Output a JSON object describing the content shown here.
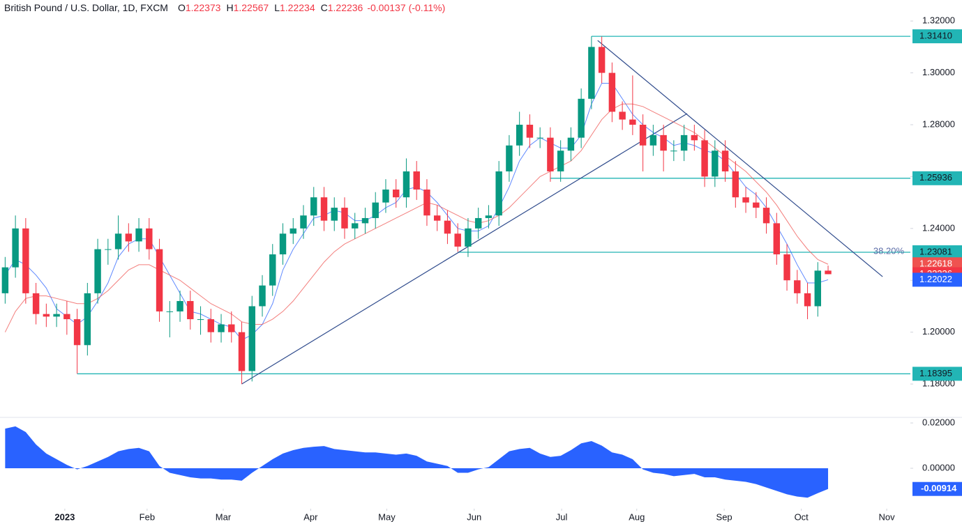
{
  "chart_data": {
    "type": "candlestick",
    "title": "British Pound / U.S. Dollar, 1D, FXCM",
    "ohlc_prefixes": [
      "O",
      "H",
      "L",
      "C"
    ],
    "change": -0.00137,
    "change_percent": {
      "value": -0.11,
      "label": "(-0.11%)"
    },
    "up_color": "#089981",
    "down_color": "#f23645",
    "xlim": [
      -0.5,
      88
    ],
    "xticks": [
      {
        "value": 5.8,
        "label": "2023"
      },
      {
        "value": 13.8,
        "label": "Feb"
      },
      {
        "value": 21.2,
        "label": "Mar"
      },
      {
        "value": 29.7,
        "label": "Apr"
      },
      {
        "value": 37.1,
        "label": "May"
      },
      {
        "value": 45.6,
        "label": "Jun"
      },
      {
        "value": 54.1,
        "label": "Jul"
      },
      {
        "value": 61.4,
        "label": "Aug"
      },
      {
        "value": 69.9,
        "label": "Sep"
      },
      {
        "value": 77.4,
        "label": "Oct"
      },
      {
        "value": 85.7,
        "label": "Nov"
      }
    ],
    "ylim": [
      1.1674,
      1.3281
    ],
    "yticks": [
      {
        "value": 1.18,
        "label": "1.18000"
      },
      {
        "value": 1.2,
        "label": "1.20000"
      },
      {
        "value": 1.22,
        "label": "1.22000"
      },
      {
        "value": 1.24,
        "label": "1.24000"
      },
      {
        "value": 1.26,
        "label": "1.26000"
      },
      {
        "value": 1.28,
        "label": "1.28000"
      },
      {
        "value": 1.3,
        "label": "1.30000"
      },
      {
        "value": 1.32,
        "label": "1.32000"
      }
    ],
    "open": [
      1.215,
      1.225,
      1.24,
      1.215,
      1.207,
      1.206,
      1.207,
      1.205,
      1.195,
      1.215,
      1.232,
      1.232,
      1.238,
      1.235,
      1.24,
      1.232,
      1.208,
      1.208,
      1.212,
      1.205,
      1.205,
      1.2,
      1.203,
      1.2,
      1.185,
      1.21,
      1.218,
      1.23,
      1.238,
      1.24,
      1.245,
      1.252,
      1.243,
      1.248,
      1.24,
      1.242,
      1.244,
      1.25,
      1.255,
      1.252,
      1.262,
      1.255,
      1.245,
      1.243,
      1.238,
      1.233,
      1.24,
      1.244,
      1.245,
      1.262,
      1.272,
      1.28,
      1.275,
      1.275,
      1.262,
      1.27,
      1.275,
      1.29,
      1.31,
      1.3,
      1.285,
      1.282,
      1.28,
      1.272,
      1.276,
      1.27,
      1.27,
      1.276,
      1.274,
      1.26,
      1.27,
      1.262,
      1.252,
      1.25,
      1.248,
      1.242,
      1.23,
      1.22,
      1.215,
      1.21,
      1.22373
    ],
    "high": [
      1.229,
      1.245,
      1.244,
      1.219,
      1.211,
      1.211,
      1.212,
      1.209,
      1.219,
      1.236,
      1.236,
      1.245,
      1.242,
      1.244,
      1.244,
      1.236,
      1.212,
      1.216,
      1.216,
      1.21,
      1.209,
      1.207,
      1.208,
      1.204,
      1.214,
      1.222,
      1.234,
      1.242,
      1.244,
      1.249,
      1.256,
      1.256,
      1.252,
      1.252,
      1.246,
      1.248,
      1.254,
      1.259,
      1.259,
      1.267,
      1.266,
      1.259,
      1.249,
      1.247,
      1.242,
      1.244,
      1.248,
      1.249,
      1.266,
      1.276,
      1.285,
      1.284,
      1.279,
      1.279,
      1.274,
      1.279,
      1.294,
      1.3141,
      1.314,
      1.304,
      1.289,
      1.299,
      1.284,
      1.28,
      1.28,
      1.274,
      1.28,
      1.28,
      1.278,
      1.274,
      1.274,
      1.266,
      1.256,
      1.254,
      1.252,
      1.246,
      1.234,
      1.224,
      1.219,
      1.227,
      1.22567
    ],
    "low": [
      1.211,
      1.221,
      1.211,
      1.203,
      1.202,
      1.202,
      1.199,
      1.184,
      1.191,
      1.211,
      1.226,
      1.228,
      1.231,
      1.231,
      1.228,
      1.204,
      1.198,
      1.204,
      1.201,
      1.199,
      1.196,
      1.196,
      1.196,
      1.18,
      1.181,
      1.206,
      1.214,
      1.226,
      1.234,
      1.236,
      1.241,
      1.239,
      1.239,
      1.236,
      1.236,
      1.238,
      1.24,
      1.246,
      1.248,
      1.248,
      1.251,
      1.241,
      1.239,
      1.234,
      1.231,
      1.229,
      1.236,
      1.24,
      1.241,
      1.258,
      1.268,
      1.271,
      1.271,
      1.258,
      1.258,
      1.266,
      1.271,
      1.286,
      1.296,
      1.281,
      1.278,
      1.276,
      1.262,
      1.268,
      1.262,
      1.266,
      1.266,
      1.27,
      1.256,
      1.256,
      1.258,
      1.248,
      1.246,
      1.244,
      1.238,
      1.226,
      1.216,
      1.211,
      1.205,
      1.206,
      1.22234
    ],
    "close": [
      1.225,
      1.24,
      1.215,
      1.207,
      1.206,
      1.207,
      1.205,
      1.195,
      1.215,
      1.232,
      1.232,
      1.238,
      1.235,
      1.24,
      1.232,
      1.208,
      1.208,
      1.212,
      1.205,
      1.205,
      1.2,
      1.203,
      1.2,
      1.185,
      1.21,
      1.218,
      1.23,
      1.238,
      1.24,
      1.245,
      1.252,
      1.243,
      1.248,
      1.24,
      1.242,
      1.244,
      1.25,
      1.255,
      1.252,
      1.262,
      1.255,
      1.245,
      1.243,
      1.238,
      1.233,
      1.24,
      1.244,
      1.245,
      1.262,
      1.272,
      1.28,
      1.275,
      1.275,
      1.262,
      1.27,
      1.275,
      1.29,
      1.31,
      1.3,
      1.285,
      1.282,
      1.28,
      1.272,
      1.276,
      1.27,
      1.27,
      1.276,
      1.274,
      1.26,
      1.27,
      1.262,
      1.252,
      1.25,
      1.248,
      1.242,
      1.23,
      1.22,
      1.215,
      1.21,
      1.22373,
      1.22236
    ],
    "moving_averages": [
      {
        "color": "#2962ff",
        "badge_color": "#2962ff",
        "values": [
          1.222,
          1.228,
          1.226,
          1.222,
          1.217,
          1.209,
          1.206,
          1.203,
          1.206,
          1.212,
          1.219,
          1.229,
          1.234,
          1.236,
          1.236,
          1.229,
          1.222,
          1.215,
          1.208,
          1.207,
          1.205,
          1.203,
          1.202,
          1.197,
          1.199,
          1.203,
          1.211,
          1.224,
          1.232,
          1.238,
          1.244,
          1.245,
          1.247,
          1.246,
          1.243,
          1.243,
          1.245,
          1.248,
          1.25,
          1.255,
          1.256,
          1.254,
          1.25,
          1.245,
          1.24,
          1.239,
          1.239,
          1.241,
          1.248,
          1.256,
          1.266,
          1.272,
          1.275,
          1.273,
          1.271,
          1.271,
          1.276,
          1.288,
          1.296,
          1.296,
          1.29,
          1.284,
          1.28,
          1.277,
          1.275,
          1.272,
          1.273,
          1.272,
          1.27,
          1.269,
          1.266,
          1.261,
          1.256,
          1.253,
          1.248,
          1.241,
          1.234,
          1.226,
          1.219,
          1.219,
          1.22022
        ]
      },
      {
        "color": "#ef5350",
        "badge_color": "#f23645",
        "values": [
          1.2,
          1.208,
          1.213,
          1.214,
          1.214,
          1.213,
          1.212,
          1.211,
          1.211,
          1.213,
          1.216,
          1.22,
          1.224,
          1.226,
          1.226,
          1.224,
          1.222,
          1.22,
          1.217,
          1.214,
          1.211,
          1.209,
          1.207,
          1.204,
          1.203,
          1.203,
          1.205,
          1.208,
          1.212,
          1.217,
          1.222,
          1.227,
          1.231,
          1.234,
          1.236,
          1.238,
          1.24,
          1.242,
          1.244,
          1.246,
          1.248,
          1.25,
          1.249,
          1.247,
          1.245,
          1.243,
          1.242,
          1.243,
          1.245,
          1.248,
          1.252,
          1.256,
          1.26,
          1.262,
          1.264,
          1.266,
          1.27,
          1.276,
          1.282,
          1.286,
          1.288,
          1.288,
          1.287,
          1.285,
          1.283,
          1.281,
          1.279,
          1.277,
          1.274,
          1.271,
          1.268,
          1.265,
          1.262,
          1.258,
          1.254,
          1.249,
          1.243,
          1.237,
          1.232,
          1.228,
          1.22618
        ]
      }
    ],
    "level_color": "#22b5b5",
    "levels": [
      {
        "value": {
          "value": 1.3141,
          "label": "1.31410"
        },
        "start": 57
      },
      {
        "value": 1.25936,
        "start": 53
      },
      {
        "value": 1.23081,
        "start": 44,
        "note": "38.20%"
      },
      {
        "value": 1.18395,
        "start": 7
      }
    ],
    "trendline_color": "#2f4b8c",
    "trendlines": [
      {
        "from": [
          23,
          1.18
        ],
        "to": [
          66.3,
          1.2843
        ]
      },
      {
        "from": [
          57.6,
          1.3125
        ],
        "to": [
          85.3,
          1.2214
        ]
      }
    ],
    "oscillator": {
      "color": "#2962ff",
      "ylim": [
        -0.01723,
        0.02215
      ],
      "yticks": [
        {
          "value": 0,
          "label": "0.00000"
        },
        {
          "value": 0.02,
          "label": "0.02000"
        }
      ],
      "values": [
        0.0175,
        0.0185,
        0.016,
        0.0105,
        0.0065,
        0.004,
        0.0015,
        -0.0005,
        0.001,
        0.003,
        0.005,
        0.0075,
        0.0085,
        0.009,
        0.0075,
        0.001,
        -0.002,
        -0.003,
        -0.004,
        -0.0045,
        -0.0045,
        -0.005,
        -0.005,
        -0.0055,
        -0.002,
        0.001,
        0.004,
        0.0065,
        0.008,
        0.009,
        0.0095,
        0.0098,
        0.0085,
        0.008,
        0.0075,
        0.007,
        0.007,
        0.0065,
        0.006,
        0.0065,
        0.0055,
        0.003,
        0.002,
        0.001,
        -0.002,
        -0.002,
        -0.0005,
        0.0005,
        0.004,
        0.0075,
        0.0085,
        0.009,
        0.0065,
        0.005,
        0.0055,
        0.008,
        0.011,
        0.012,
        0.01,
        0.007,
        0.006,
        0.004,
        -0.0005,
        -0.002,
        -0.0025,
        -0.0035,
        -0.003,
        -0.0025,
        -0.004,
        -0.004,
        -0.005,
        -0.0055,
        -0.006,
        -0.007,
        -0.0085,
        -0.01,
        -0.0115,
        -0.0125,
        -0.013,
        -0.011,
        -0.00914
      ]
    }
  }
}
